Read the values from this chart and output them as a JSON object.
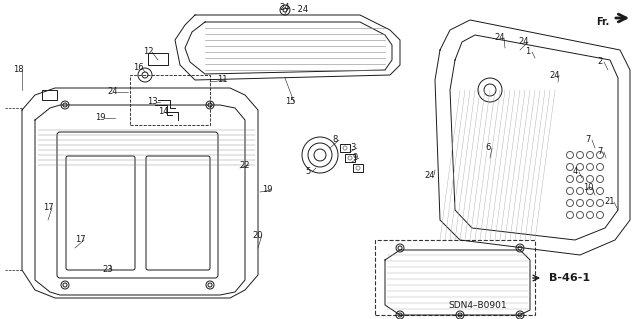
{
  "bg_color": "#ffffff",
  "line_color": "#1a1a1a",
  "ref_code": "B-46-1",
  "part_code": "SDN4–B0901",
  "fr_label": "Fr.",
  "part_labels": [
    [
      "18",
      18,
      70,
      22,
      90
    ],
    [
      "19",
      100,
      118,
      115,
      118
    ],
    [
      "24",
      113,
      92,
      128,
      92
    ],
    [
      "12",
      148,
      52,
      158,
      60
    ],
    [
      "16",
      138,
      68,
      145,
      72
    ],
    [
      "13",
      152,
      102,
      160,
      102
    ],
    [
      "14",
      163,
      112,
      168,
      112
    ],
    [
      "11",
      222,
      80,
      210,
      82
    ],
    [
      "15",
      290,
      102,
      285,
      78
    ],
    [
      "22",
      245,
      165,
      240,
      168
    ],
    [
      "19",
      267,
      190,
      260,
      192
    ],
    [
      "20",
      258,
      235,
      258,
      248
    ],
    [
      "17",
      48,
      208,
      48,
      220
    ],
    [
      "17",
      80,
      240,
      75,
      248
    ],
    [
      "23",
      108,
      270,
      110,
      265
    ],
    [
      "24",
      285,
      7,
      285,
      14
    ],
    [
      "8",
      335,
      140,
      330,
      148
    ],
    [
      "3",
      353,
      148,
      350,
      152
    ],
    [
      "9",
      355,
      158,
      352,
      162
    ],
    [
      "5",
      308,
      172,
      316,
      168
    ],
    [
      "24",
      430,
      175,
      435,
      170
    ],
    [
      "6",
      488,
      148,
      490,
      158
    ],
    [
      "24",
      500,
      38,
      505,
      48
    ],
    [
      "24",
      524,
      42,
      520,
      50
    ],
    [
      "1",
      528,
      52,
      535,
      58
    ],
    [
      "2",
      600,
      62,
      608,
      70
    ],
    [
      "24",
      555,
      75,
      558,
      82
    ],
    [
      "7",
      588,
      140,
      595,
      148
    ],
    [
      "7",
      600,
      152,
      606,
      158
    ],
    [
      "4",
      575,
      172,
      582,
      178
    ],
    [
      "10",
      588,
      188,
      595,
      195
    ],
    [
      "21",
      610,
      202,
      618,
      210
    ]
  ]
}
